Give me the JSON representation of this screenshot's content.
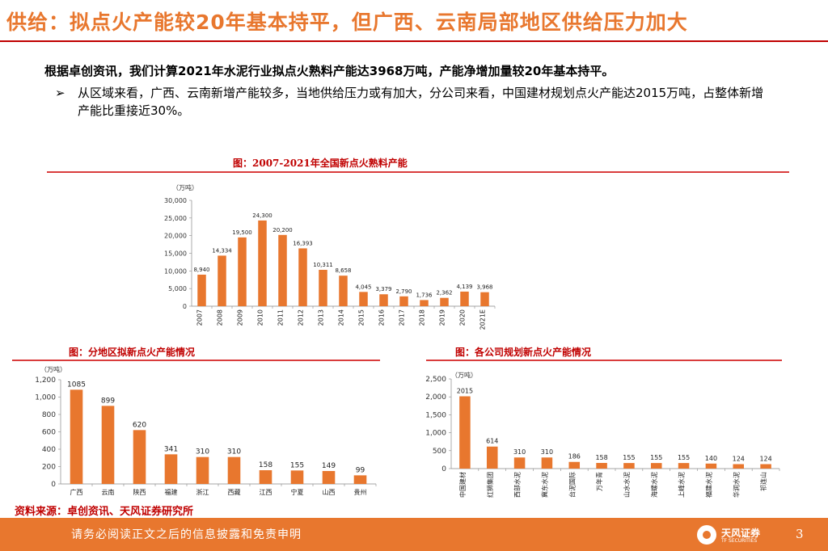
{
  "page": {
    "title": "供给：拟点火产能较20年基本持平，但广西、云南局部地区供给压力加大",
    "intro": "根据卓创资讯，我们计算2021年水泥行业拟点火熟料产能达3968万吨，产能净增加量较20年基本持平。",
    "bullet_marker": "➢",
    "bullet": "从区域来看，广西、云南新增产能较多，当地供给压力或有加大，分公司来看，中国建材规划点火产能达2015万吨，占整体新增产能比重接近30%。",
    "source": "资料来源：卓创资讯、天风证券研究所",
    "disclaimer": "请务必阅读正文之后的信息披露和免责申明",
    "brand": "天风证券",
    "brand_en": "TF SECURITIES",
    "page_number": "3",
    "accent_color": "#e8772e",
    "title_color": "#e8772e",
    "bar_color": "#e8772e"
  },
  "chart_data": [
    {
      "type": "bar",
      "title": "图：2007-2021年全国新点火熟料产能",
      "unit": "（万吨）",
      "categories": [
        "2007",
        "2008",
        "2009",
        "2010",
        "2011",
        "2012",
        "2013",
        "2014",
        "2015",
        "2016",
        "2017",
        "2018",
        "2019",
        "2020",
        "2021E"
      ],
      "values": [
        8940,
        14334,
        19500,
        24300,
        20200,
        16393,
        10311,
        8658,
        4045,
        3379,
        2790,
        1736,
        2362,
        4139,
        3968
      ],
      "data_labels": [
        "8,940",
        "14,334",
        "19,500",
        "24,300",
        "20,200",
        "16,393",
        "10,311",
        "8,658",
        "4,045",
        "3,379",
        "2,790",
        "1,736",
        "2,362",
        "4,139",
        "3,968"
      ],
      "yticks": [
        "0",
        "5,000",
        "10,000",
        "15,000",
        "20,000",
        "25,000",
        "30,000"
      ],
      "ylim": [
        0,
        30000
      ],
      "xlabel": "",
      "ylabel": ""
    },
    {
      "type": "bar",
      "title": "图：分地区拟新点火产能情况",
      "unit": "（万吨）",
      "categories": [
        "广西",
        "云南",
        "陕西",
        "福建",
        "浙江",
        "西藏",
        "江西",
        "宁夏",
        "山西",
        "贵州"
      ],
      "values": [
        1085,
        899,
        620,
        341,
        310,
        310,
        158,
        155,
        149,
        99
      ],
      "data_labels": [
        "1085",
        "899",
        "620",
        "341",
        "310",
        "310",
        "158",
        "155",
        "149",
        "99"
      ],
      "yticks": [
        "0",
        "200",
        "400",
        "600",
        "800",
        "1,000",
        "1,200"
      ],
      "ylim": [
        0,
        1200
      ],
      "xlabel": "",
      "ylabel": ""
    },
    {
      "type": "bar",
      "title": "图：各公司规划新点火产能情况",
      "unit": "（万吨）",
      "categories": [
        "中国建材",
        "红狮集团",
        "西部水泥",
        "冀东水泥",
        "台泥国际",
        "万年青",
        "山水水泥",
        "海螺水泥",
        "上峰水泥",
        "福建水泥",
        "华润水泥",
        "祁连山"
      ],
      "values": [
        2015,
        614,
        310,
        310,
        186,
        158,
        155,
        155,
        155,
        140,
        124,
        124
      ],
      "data_labels": [
        "2015",
        "614",
        "310",
        "310",
        "186",
        "158",
        "155",
        "155",
        "155",
        "140",
        "124",
        "124"
      ],
      "yticks": [
        "0",
        "500",
        "1,000",
        "1,500",
        "2,000",
        "2,500"
      ],
      "ylim": [
        0,
        2500
      ],
      "xlabel": "",
      "ylabel": ""
    }
  ]
}
